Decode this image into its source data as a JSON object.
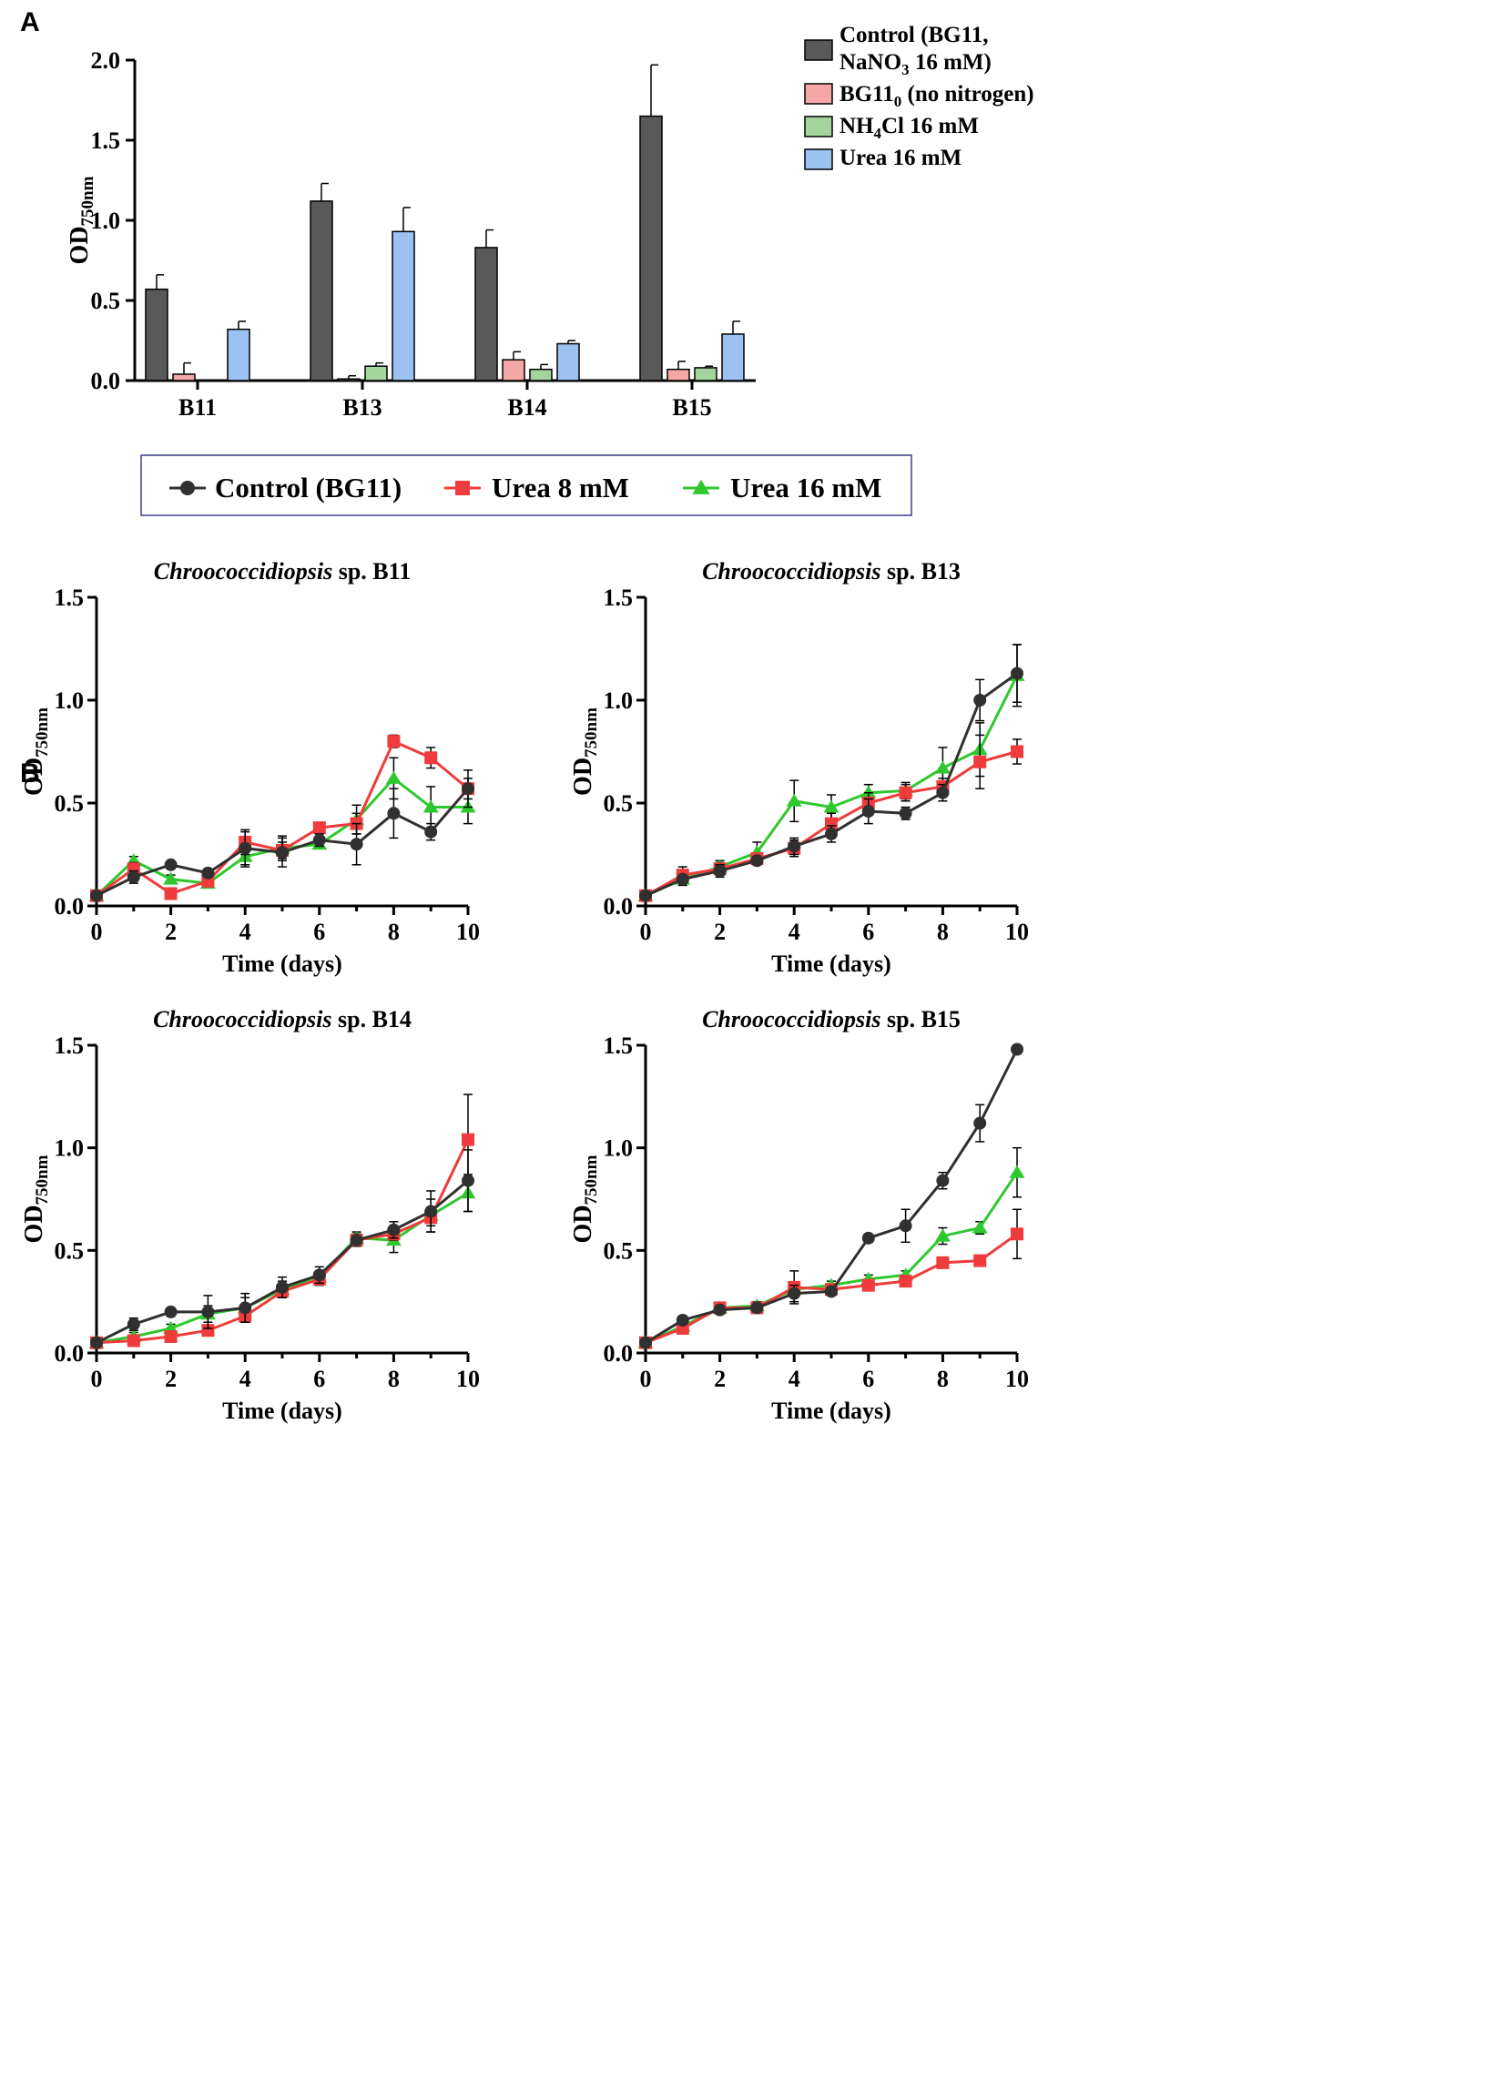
{
  "panel_a_label": "A",
  "panel_b_label": "B",
  "chart_data": [
    {
      "id": "A",
      "type": "bar",
      "ylabel": "OD",
      "ylabel_sub": "750nm",
      "ylim": [
        0,
        2.0
      ],
      "yticks": [
        "0.0",
        "0.5",
        "1.0",
        "1.5",
        "2.0"
      ],
      "categories": [
        "B11",
        "B13",
        "B14",
        "B15"
      ],
      "series": [
        {
          "name": "Control (BG11, NaNO3 16 mM)",
          "legend_lines": [
            [
              "Control (BG11,",
              ""
            ],
            [
              "NaNO",
              "3",
              " 16 mM)"
            ]
          ],
          "color": "#595959",
          "values": [
            0.57,
            1.12,
            0.83,
            1.65
          ],
          "errors": [
            0.09,
            0.11,
            0.11,
            0.32
          ]
        },
        {
          "name": "BG110 (no nitrogen)",
          "legend_lines": [
            [
              "BG11",
              "0",
              "  (no nitrogen)"
            ]
          ],
          "color": "#f4a7a5",
          "values": [
            0.04,
            0.01,
            0.13,
            0.07
          ],
          "errors": [
            0.07,
            0.02,
            0.05,
            0.05
          ]
        },
        {
          "name": "NH4Cl 16 mM",
          "legend_lines": [
            [
              "NH",
              "4",
              "Cl 16 mM"
            ]
          ],
          "color": "#a3d49c",
          "values": [
            0.0,
            0.09,
            0.07,
            0.08
          ],
          "errors": [
            0.0,
            0.02,
            0.03,
            0.01
          ]
        },
        {
          "name": "Urea 16 mM",
          "legend_lines": [
            [
              "Urea 16 mM",
              ""
            ]
          ],
          "color": "#9cc2f2",
          "values": [
            0.32,
            0.93,
            0.23,
            0.29
          ],
          "errors": [
            0.05,
            0.15,
            0.02,
            0.08
          ]
        }
      ]
    },
    {
      "id": "B11",
      "type": "line",
      "title_italic": "Chroococcidiopsis",
      "title_rest": " sp. B11",
      "xlabel": "Time (days)",
      "ylabel": "OD",
      "ylabel_sub": "750nm",
      "xlim": [
        0,
        10
      ],
      "ylim": [
        0,
        1.5
      ],
      "xticks": [
        "0",
        "2",
        "4",
        "6",
        "8",
        "10"
      ],
      "yticks": [
        "0.0",
        "0.5",
        "1.0",
        "1.5"
      ],
      "x": [
        0,
        1,
        2,
        3,
        4,
        5,
        6,
        7,
        8,
        9,
        10
      ],
      "series": [
        {
          "name": "Urea 16 mM",
          "color": "#2ec82e",
          "marker": "triangle",
          "values": [
            0.05,
            0.22,
            0.13,
            0.11,
            0.24,
            0.28,
            0.3,
            0.42,
            0.62,
            0.48,
            0.48
          ],
          "errors": [
            0.01,
            0.02,
            0.02,
            0.02,
            0.05,
            0.06,
            0.02,
            0.07,
            0.1,
            0.1,
            0.08
          ]
        },
        {
          "name": "Urea 8 mM",
          "color": "#ef3b3b",
          "marker": "square",
          "values": [
            0.05,
            0.18,
            0.06,
            0.12,
            0.31,
            0.27,
            0.38,
            0.4,
            0.8,
            0.72,
            0.57
          ],
          "errors": [
            0.01,
            0.03,
            0.01,
            0.02,
            0.06,
            0.04,
            0.02,
            0.05,
            0.03,
            0.05,
            0.05
          ]
        },
        {
          "name": "Control (BG11)",
          "color": "#303030",
          "marker": "circle",
          "values": [
            0.05,
            0.14,
            0.2,
            0.16,
            0.28,
            0.26,
            0.32,
            0.3,
            0.45,
            0.36,
            0.57
          ],
          "errors": [
            0.01,
            0.03,
            0.01,
            0.02,
            0.08,
            0.07,
            0.03,
            0.1,
            0.12,
            0.04,
            0.09
          ]
        }
      ]
    },
    {
      "id": "B13",
      "type": "line",
      "title_italic": "Chroococcidiopsis",
      "title_rest": " sp. B13",
      "xlabel": "Time (days)",
      "ylabel": "OD",
      "ylabel_sub": "750nm",
      "xlim": [
        0,
        10
      ],
      "ylim": [
        0,
        1.5
      ],
      "xticks": [
        "0",
        "2",
        "4",
        "6",
        "8",
        "10"
      ],
      "yticks": [
        "0.0",
        "0.5",
        "1.0",
        "1.5"
      ],
      "x": [
        0,
        1,
        2,
        3,
        4,
        5,
        6,
        7,
        8,
        9,
        10
      ],
      "series": [
        {
          "name": "Urea 16 mM",
          "color": "#2ec82e",
          "marker": "triangle",
          "values": [
            0.05,
            0.13,
            0.19,
            0.26,
            0.51,
            0.48,
            0.55,
            0.56,
            0.67,
            0.76,
            1.12
          ],
          "errors": [
            0.01,
            0.03,
            0.03,
            0.05,
            0.1,
            0.06,
            0.04,
            0.04,
            0.1,
            0.13,
            0.15
          ]
        },
        {
          "name": "Urea 8 mM",
          "color": "#ef3b3b",
          "marker": "square",
          "values": [
            0.05,
            0.15,
            0.18,
            0.23,
            0.28,
            0.4,
            0.5,
            0.55,
            0.58,
            0.7,
            0.75
          ],
          "errors": [
            0.01,
            0.04,
            0.03,
            0.02,
            0.04,
            0.05,
            0.05,
            0.04,
            0.04,
            0.13,
            0.06
          ]
        },
        {
          "name": "Control (BG11)",
          "color": "#303030",
          "marker": "circle",
          "values": [
            0.05,
            0.13,
            0.17,
            0.22,
            0.29,
            0.35,
            0.46,
            0.45,
            0.55,
            1.0,
            1.13
          ],
          "errors": [
            0.01,
            0.02,
            0.03,
            0.02,
            0.04,
            0.04,
            0.06,
            0.03,
            0.04,
            0.1,
            0.14
          ]
        }
      ]
    },
    {
      "id": "B14",
      "type": "line",
      "title_italic": "Chroococcidiopsis",
      "title_rest": " sp. B14",
      "xlabel": "Time (days)",
      "ylabel": "OD",
      "ylabel_sub": "750nm",
      "xlim": [
        0,
        10
      ],
      "ylim": [
        0,
        1.5
      ],
      "xticks": [
        "0",
        "2",
        "4",
        "6",
        "8",
        "10"
      ],
      "yticks": [
        "0.0",
        "0.5",
        "1.0",
        "1.5"
      ],
      "x": [
        0,
        1,
        2,
        3,
        4,
        5,
        6,
        7,
        8,
        9,
        10
      ],
      "series": [
        {
          "name": "Urea 16 mM",
          "color": "#2ec82e",
          "marker": "triangle",
          "values": [
            0.05,
            0.08,
            0.12,
            0.19,
            0.22,
            0.31,
            0.37,
            0.56,
            0.55,
            0.67,
            0.78
          ],
          "errors": [
            0.01,
            0.02,
            0.02,
            0.04,
            0.05,
            0.04,
            0.03,
            0.03,
            0.06,
            0.08,
            0.09
          ]
        },
        {
          "name": "Urea 8 mM",
          "color": "#ef3b3b",
          "marker": "square",
          "values": [
            0.05,
            0.06,
            0.08,
            0.11,
            0.18,
            0.3,
            0.36,
            0.55,
            0.58,
            0.66,
            1.04
          ],
          "errors": [
            0.01,
            0.01,
            0.02,
            0.02,
            0.03,
            0.03,
            0.03,
            0.03,
            0.03,
            0.04,
            0.22
          ]
        },
        {
          "name": "Control (BG11)",
          "color": "#303030",
          "marker": "circle",
          "values": [
            0.05,
            0.14,
            0.2,
            0.2,
            0.22,
            0.32,
            0.38,
            0.55,
            0.6,
            0.69,
            0.84
          ],
          "errors": [
            0.01,
            0.03,
            0.02,
            0.08,
            0.07,
            0.05,
            0.04,
            0.02,
            0.04,
            0.1,
            0.15
          ]
        }
      ]
    },
    {
      "id": "B15",
      "type": "line",
      "title_italic": "Chroococcidiopsis",
      "title_rest": " sp. B15",
      "xlabel": "Time (days)",
      "ylabel": "OD",
      "ylabel_sub": "750nm",
      "xlim": [
        0,
        10
      ],
      "ylim": [
        0,
        1.5
      ],
      "xticks": [
        "0",
        "2",
        "4",
        "6",
        "8",
        "10"
      ],
      "yticks": [
        "0.0",
        "0.5",
        "1.0",
        "1.5"
      ],
      "x": [
        0,
        1,
        2,
        3,
        4,
        5,
        6,
        7,
        8,
        9,
        10
      ],
      "series": [
        {
          "name": "Urea 16 mM",
          "color": "#2ec82e",
          "marker": "triangle",
          "values": [
            0.05,
            0.13,
            0.22,
            0.23,
            0.31,
            0.33,
            0.36,
            0.38,
            0.57,
            0.61,
            0.88
          ],
          "errors": [
            0.01,
            0.02,
            0.02,
            0.02,
            0.03,
            0.02,
            0.02,
            0.02,
            0.04,
            0.03,
            0.12
          ]
        },
        {
          "name": "Urea 8 mM",
          "color": "#ef3b3b",
          "marker": "square",
          "values": [
            0.05,
            0.12,
            0.22,
            0.22,
            0.32,
            0.31,
            0.33,
            0.35,
            0.44,
            0.45,
            0.58
          ],
          "errors": [
            0.01,
            0.02,
            0.02,
            0.02,
            0.08,
            0.02,
            0.02,
            0.02,
            0.02,
            0.02,
            0.12
          ]
        },
        {
          "name": "Control (BG11)",
          "color": "#303030",
          "marker": "circle",
          "values": [
            0.05,
            0.16,
            0.21,
            0.22,
            0.29,
            0.3,
            0.56,
            0.62,
            0.84,
            1.12,
            1.48
          ],
          "errors": [
            0.01,
            0.02,
            0.02,
            0.02,
            0.04,
            0.02,
            0.02,
            0.08,
            0.04,
            0.09,
            0.02
          ]
        }
      ]
    }
  ],
  "legend_b": [
    {
      "label": "Control (BG11)",
      "color": "#303030",
      "marker": "circle"
    },
    {
      "label": "Urea 8 mM",
      "color": "#ef3b3b",
      "marker": "square"
    },
    {
      "label": "Urea 16 mM",
      "color": "#2ec82e",
      "marker": "triangle"
    }
  ]
}
